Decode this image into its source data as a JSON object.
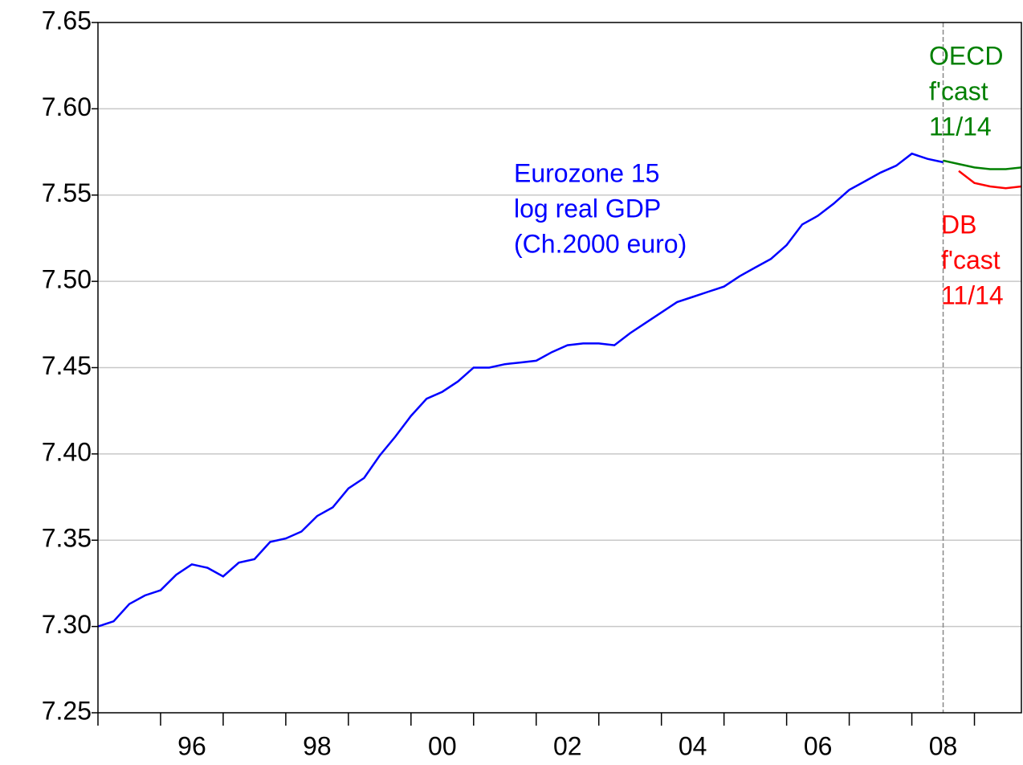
{
  "chart_data": {
    "type": "line",
    "xlim": [
      1995,
      2009.75
    ],
    "ylim": [
      7.25,
      7.65
    ],
    "yticks": [
      {
        "value": 7.25,
        "label": "7.25"
      },
      {
        "value": 7.3,
        "label": "7.30"
      },
      7.35,
      {
        "value": 7.4,
        "label": "7.40"
      },
      7.45,
      {
        "value": 7.5,
        "label": "7.50"
      },
      7.55,
      {
        "value": 7.6,
        "label": "7.60"
      },
      7.65
    ],
    "xticks": [
      {
        "value": 1996.5,
        "label": "96"
      },
      {
        "value": 1998.5,
        "label": "98"
      },
      {
        "value": 2000.5,
        "label": "00"
      },
      {
        "value": 2002.5,
        "label": "02"
      },
      {
        "value": 2004.5,
        "label": "04"
      },
      {
        "value": 2006.5,
        "label": "06"
      },
      {
        "value": 2008.5,
        "label": "08"
      }
    ],
    "xtick_marks": [
      1995,
      1996,
      1997,
      1998,
      1999,
      2000,
      2001,
      2002,
      2003,
      2004,
      2005,
      2006,
      2007,
      2008,
      2009
    ],
    "grid": true,
    "vline": 2008.5,
    "series": [
      {
        "name": "Eurozone 15 log real GDP (Ch.2000 euro)",
        "color": "#0000ff",
        "x": [
          1995,
          1995.25,
          1995.5,
          1995.75,
          1996,
          1996.25,
          1996.5,
          1996.75,
          1997,
          1997.25,
          1997.5,
          1997.75,
          1998,
          1998.25,
          1998.5,
          1998.75,
          1999,
          1999.25,
          1999.5,
          1999.75,
          2000,
          2000.25,
          2000.5,
          2000.75,
          2001,
          2001.25,
          2001.5,
          2001.75,
          2002,
          2002.25,
          2002.5,
          2002.75,
          2003,
          2003.25,
          2003.5,
          2003.75,
          2004,
          2004.25,
          2004.5,
          2004.75,
          2005,
          2005.25,
          2005.5,
          2005.75,
          2006,
          2006.25,
          2006.5,
          2006.75,
          2007,
          2007.25,
          2007.5,
          2007.75,
          2008,
          2008.25,
          2008.5
        ],
        "values": [
          7.3,
          7.303,
          7.313,
          7.318,
          7.321,
          7.33,
          7.336,
          7.334,
          7.329,
          7.337,
          7.339,
          7.349,
          7.351,
          7.355,
          7.364,
          7.369,
          7.38,
          7.386,
          7.399,
          7.41,
          7.422,
          7.432,
          7.436,
          7.442,
          7.45,
          7.45,
          7.452,
          7.453,
          7.454,
          7.459,
          7.463,
          7.464,
          7.464,
          7.463,
          7.47,
          7.476,
          7.482,
          7.488,
          7.491,
          7.494,
          7.497,
          7.503,
          7.508,
          7.513,
          7.521,
          7.533,
          7.538,
          7.545,
          7.553,
          7.558,
          7.563,
          7.567,
          7.574,
          7.571,
          7.569
        ]
      },
      {
        "name": "OECD f'cast 11/14",
        "color": "#008000",
        "x": [
          2008.5,
          2008.75,
          2009,
          2009.25,
          2009.5,
          2009.75
        ],
        "values": [
          7.57,
          7.568,
          7.566,
          7.565,
          7.565,
          7.566
        ]
      },
      {
        "name": "DB f'cast 11/14",
        "color": "#ff0000",
        "x": [
          2008.75,
          2009,
          2009.25,
          2009.5,
          2009.75
        ],
        "values": [
          7.564,
          7.557,
          7.555,
          7.554,
          7.555
        ]
      }
    ],
    "annotations": [
      {
        "lines": [
          "Eurozone 15",
          "log real GDP",
          "(Ch.2000 euro)"
        ],
        "color": "#0000ff"
      },
      {
        "lines": [
          "OECD",
          "f'cast",
          "11/14"
        ],
        "color": "#008000"
      },
      {
        "lines": [
          "DB",
          "f'cast",
          "11/14"
        ],
        "color": "#ff0000"
      }
    ]
  }
}
